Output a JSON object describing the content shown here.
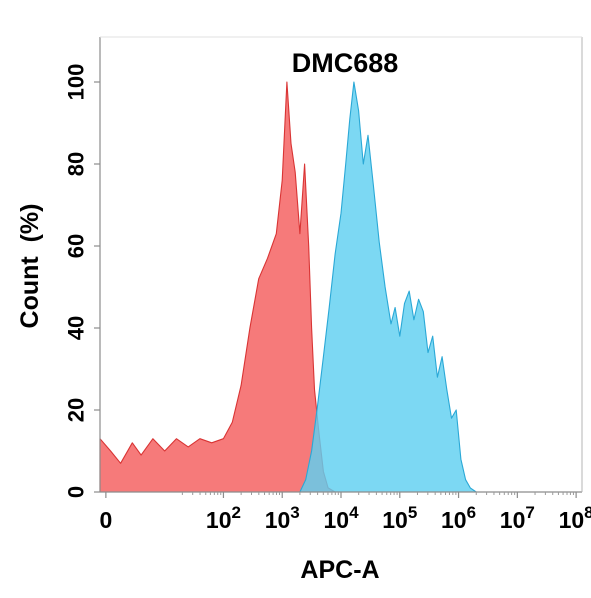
{
  "chart_data": {
    "type": "area",
    "title": "DMC688",
    "xlabel": "APC-A",
    "ylabel": "Count  (%)",
    "x_scale": "biexponential",
    "y_ticks": [
      "0",
      "20",
      "40",
      "60",
      "80",
      "100"
    ],
    "x_ticks": [
      {
        "base": "0",
        "exp": ""
      },
      {
        "base": "10",
        "exp": "2"
      },
      {
        "base": "10",
        "exp": "3"
      },
      {
        "base": "10",
        "exp": "4"
      },
      {
        "base": "10",
        "exp": "5"
      },
      {
        "base": "10",
        "exp": "6"
      },
      {
        "base": "10",
        "exp": "7"
      },
      {
        "base": "10",
        "exp": "8"
      }
    ],
    "ylim": [
      0,
      100
    ],
    "xlim_decades": [
      -0.1,
      8.1
    ],
    "grid": false,
    "legend": "none",
    "series": [
      {
        "color": "#f45d5d",
        "stroke": "#d93434",
        "points": [
          [
            -0.1,
            13
          ],
          [
            0.08,
            10
          ],
          [
            0.25,
            7
          ],
          [
            0.45,
            12
          ],
          [
            0.6,
            9
          ],
          [
            0.8,
            13
          ],
          [
            1.0,
            10
          ],
          [
            1.2,
            13
          ],
          [
            1.4,
            11
          ],
          [
            1.6,
            13
          ],
          [
            1.8,
            12
          ],
          [
            2.0,
            13
          ],
          [
            2.15,
            17
          ],
          [
            2.3,
            26
          ],
          [
            2.45,
            40
          ],
          [
            2.6,
            52
          ],
          [
            2.75,
            57
          ],
          [
            2.9,
            63
          ],
          [
            3.0,
            76
          ],
          [
            3.08,
            100
          ],
          [
            3.15,
            85
          ],
          [
            3.22,
            78
          ],
          [
            3.3,
            63
          ],
          [
            3.38,
            80
          ],
          [
            3.45,
            60
          ],
          [
            3.5,
            40
          ],
          [
            3.55,
            25
          ],
          [
            3.62,
            15
          ],
          [
            3.7,
            5
          ],
          [
            3.78,
            1
          ],
          [
            3.9,
            0
          ]
        ]
      },
      {
        "color": "#5fcff0",
        "stroke": "#2aa8d6",
        "points": [
          [
            3.3,
            0
          ],
          [
            3.4,
            3
          ],
          [
            3.5,
            10
          ],
          [
            3.6,
            21
          ],
          [
            3.7,
            33
          ],
          [
            3.8,
            45
          ],
          [
            3.9,
            58
          ],
          [
            4.0,
            68
          ],
          [
            4.08,
            80
          ],
          [
            4.15,
            91
          ],
          [
            4.22,
            100
          ],
          [
            4.3,
            93
          ],
          [
            4.38,
            80
          ],
          [
            4.46,
            87
          ],
          [
            4.55,
            75
          ],
          [
            4.65,
            61
          ],
          [
            4.75,
            50
          ],
          [
            4.85,
            41
          ],
          [
            4.92,
            45
          ],
          [
            5.0,
            38
          ],
          [
            5.08,
            46
          ],
          [
            5.16,
            49
          ],
          [
            5.24,
            42
          ],
          [
            5.32,
            47
          ],
          [
            5.4,
            44
          ],
          [
            5.48,
            34
          ],
          [
            5.56,
            38
          ],
          [
            5.64,
            28
          ],
          [
            5.72,
            33
          ],
          [
            5.8,
            25
          ],
          [
            5.88,
            18
          ],
          [
            5.96,
            20
          ],
          [
            6.04,
            8
          ],
          [
            6.12,
            3
          ],
          [
            6.2,
            1
          ],
          [
            6.3,
            0
          ]
        ]
      }
    ]
  }
}
